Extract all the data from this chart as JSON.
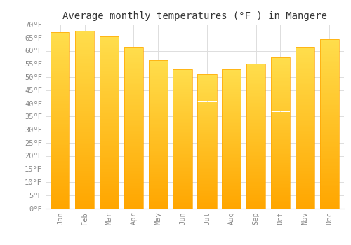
{
  "title": "Average monthly temperatures (°F ) in Mangere",
  "months": [
    "Jan",
    "Feb",
    "Mar",
    "Apr",
    "May",
    "Jun",
    "Jul",
    "Aug",
    "Sep",
    "Oct",
    "Nov",
    "Dec"
  ],
  "values": [
    67,
    67.5,
    65.5,
    61.5,
    56.5,
    53,
    51,
    53,
    55,
    57.5,
    61.5,
    64.5
  ],
  "bar_color_top": "#FFD84D",
  "bar_color_bottom": "#FFA500",
  "background_color": "#FFFFFF",
  "grid_color": "#DDDDDD",
  "ylim": [
    0,
    70
  ],
  "yticks": [
    0,
    5,
    10,
    15,
    20,
    25,
    30,
    35,
    40,
    45,
    50,
    55,
    60,
    65,
    70
  ],
  "ytick_labels": [
    "0°F",
    "5°F",
    "10°F",
    "15°F",
    "20°F",
    "25°F",
    "30°F",
    "35°F",
    "40°F",
    "45°F",
    "50°F",
    "55°F",
    "60°F",
    "65°F",
    "70°F"
  ],
  "title_fontsize": 10,
  "tick_fontsize": 7.5,
  "font_family": "monospace"
}
